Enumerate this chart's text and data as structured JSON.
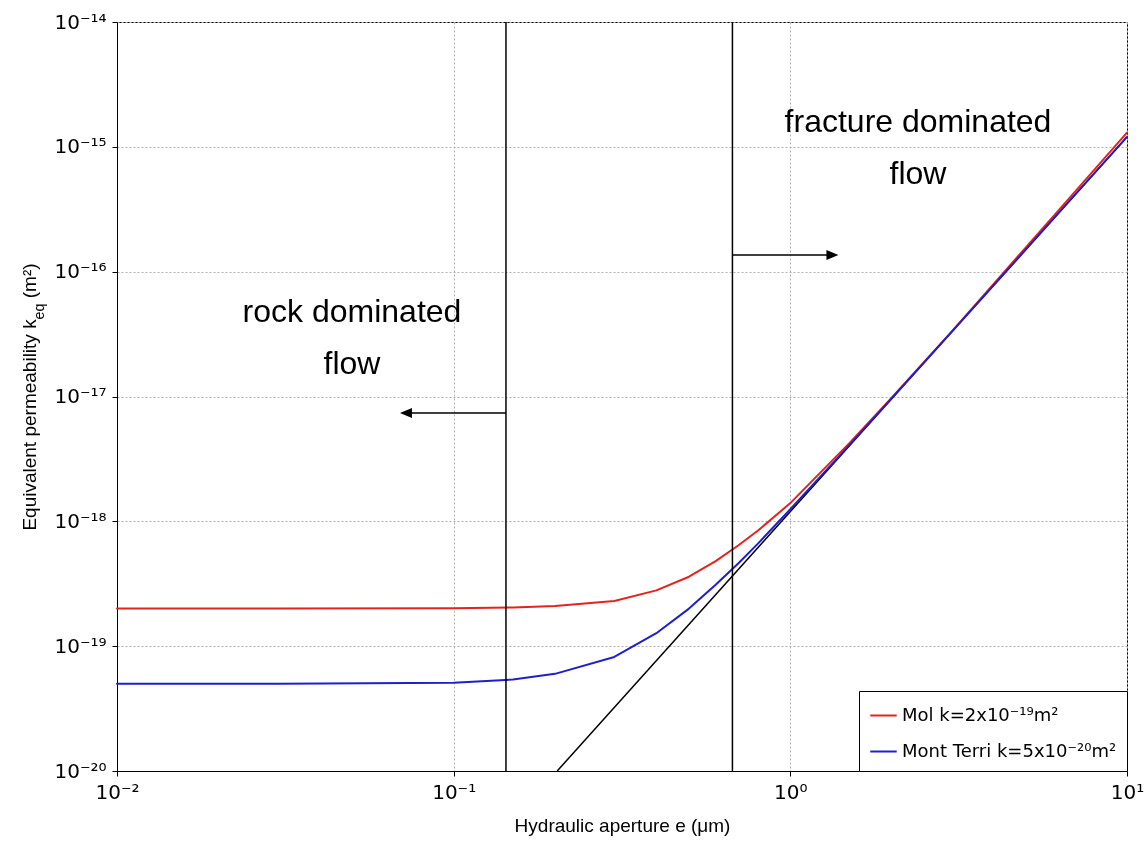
{
  "chart_data": {
    "type": "line",
    "xlabel": "Hydraulic aperture e (μm)",
    "ylabel": "Equivalent permeability k$_{eq}$ (m²)",
    "log": "xy",
    "grid": true,
    "legend": "bottom right",
    "xlim": [
      0.01,
      10
    ],
    "ylim": [
      1e-20,
      1e-14
    ],
    "xticks": [
      {
        "value": 0.01,
        "label": "10⁻²"
      },
      {
        "value": 0.1,
        "label": "10⁻¹"
      },
      {
        "value": 1,
        "label": "10⁰"
      },
      {
        "value": 10,
        "label": "10¹"
      }
    ],
    "yticks": [
      {
        "value": 1e-20,
        "label": "10⁻²⁰"
      },
      {
        "value": 1e-19,
        "label": "10⁻¹⁹"
      },
      {
        "value": 1e-18,
        "label": "10⁻¹⁸"
      },
      {
        "value": 1e-17,
        "label": "10⁻¹⁷"
      },
      {
        "value": 1e-16,
        "label": "10⁻¹⁶"
      },
      {
        "value": 1e-15,
        "label": "10⁻¹⁵"
      },
      {
        "value": 1e-14,
        "label": "10⁻¹⁴"
      }
    ],
    "x": [
      0.01,
      0.03,
      0.1,
      0.15,
      0.2,
      0.3,
      0.4,
      0.5,
      0.6,
      0.7,
      0.8,
      1,
      1.5,
      2,
      3,
      5,
      7,
      10
    ],
    "series": [
      {
        "name": "Mol k=2x10⁻¹⁹m²",
        "color": "#e3231f",
        "values": [
          2e-19,
          2e-19,
          2.01e-19,
          2.04e-19,
          2.1e-19,
          2.3e-19,
          2.8e-19,
          3.6e-19,
          4.8e-19,
          6.4e-19,
          8.4e-19,
          1.4e-18,
          4.25e-18,
          9.8e-18,
          3.26e-17,
          1.56e-16,
          4.35e-16,
          1.3e-15
        ]
      },
      {
        "name": "Mont Terri k=5x10⁻²⁰m²",
        "color": "#1f1fcc",
        "values": [
          5e-20,
          5e-20,
          5.1e-20,
          5.4e-20,
          6e-20,
          8.2e-20,
          1.27e-19,
          2e-19,
          3.1e-19,
          4.6e-19,
          6.6e-19,
          1.25e-18,
          4.1e-18,
          9.65e-18,
          3.25e-17,
          1.5e-16,
          4.12e-16,
          1.2e-15
        ]
      },
      {
        "color": "#000000",
        "x": [
          0.203,
          10
        ],
        "values": [
          1e-20,
          1.2e-15
        ]
      }
    ],
    "ref_lines": [
      {
        "axis": "x",
        "value": 0.143,
        "color": "#000000"
      },
      {
        "axis": "x",
        "value": 0.673,
        "color": "#000000"
      }
    ],
    "annotations": [
      "rock dominated\nflow",
      "fracture dominated\nflow"
    ]
  }
}
